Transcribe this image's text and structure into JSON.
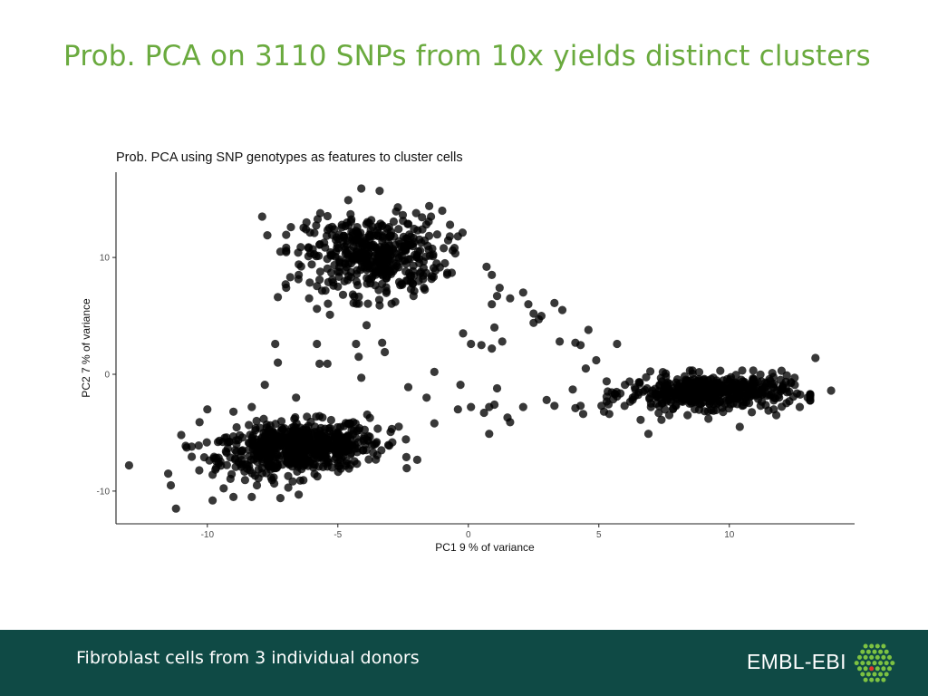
{
  "slide": {
    "title": "Prob. PCA on 3110 SNPs from 10x yields distinct clusters",
    "footer_text": "Fibroblast cells from 3 individual donors",
    "brand": "EMBL-EBI",
    "brand_logo": "embl-ebi-hexagon-logo"
  },
  "colors": {
    "title": "#6aaa3e",
    "footer_bg": "#0f4a45",
    "points": "#000000",
    "logo_green": "#7dc242",
    "logo_accent": "#e0342b"
  },
  "chart_data": {
    "type": "scatter",
    "title": "Prob. PCA using SNP genotypes as features to cluster cells",
    "xlabel": "PC1 9 % of variance",
    "ylabel": "PC2 7 % of variance",
    "xlim": [
      -13.5,
      14.8
    ],
    "ylim": [
      -12.8,
      17.3
    ],
    "xticks": [
      -10,
      -5,
      0,
      5,
      10
    ],
    "yticks": [
      -10,
      0,
      10
    ],
    "grid": false,
    "legend": "none",
    "marker_opacity": 0.78,
    "clusters": [
      {
        "center": [
          -6.5,
          -6.3
        ],
        "spread": [
          1.6,
          1.05
        ],
        "rotation_deg": 14,
        "count": 650
      },
      {
        "center": [
          -3.6,
          10.2
        ],
        "spread": [
          1.3,
          1.6
        ],
        "rotation_deg": 0,
        "count": 430
      },
      {
        "center": [
          9.2,
          -1.5
        ],
        "spread": [
          1.5,
          0.7
        ],
        "rotation_deg": 0,
        "count": 480
      }
    ],
    "points": [
      [
        -13.0,
        -7.8
      ],
      [
        -11.5,
        -8.5
      ],
      [
        -11.2,
        -11.5
      ],
      [
        -11.4,
        -9.5
      ],
      [
        -11.0,
        -5.2
      ],
      [
        -10.6,
        -6.2
      ],
      [
        -9.8,
        -10.8
      ],
      [
        -9.0,
        -10.5
      ],
      [
        -8.3,
        -10.5
      ],
      [
        -7.2,
        -10.6
      ],
      [
        -6.5,
        -10.3
      ],
      [
        -6.9,
        -9.7
      ],
      [
        -8.1,
        -9.5
      ],
      [
        -10.3,
        -4.1
      ],
      [
        -10.0,
        -3.0
      ],
      [
        -9.0,
        -3.2
      ],
      [
        -8.3,
        -2.8
      ],
      [
        -9.8,
        -8.6
      ],
      [
        -7.9,
        13.5
      ],
      [
        -7.7,
        11.9
      ],
      [
        -7.2,
        10.5
      ],
      [
        -7.0,
        7.7
      ],
      [
        -7.3,
        6.6
      ],
      [
        -6.8,
        12.6
      ],
      [
        -6.2,
        13.0
      ],
      [
        -5.9,
        12.1
      ],
      [
        -6.5,
        8.5
      ],
      [
        -6.1,
        6.5
      ],
      [
        -5.8,
        5.6
      ],
      [
        -5.3,
        5.1
      ],
      [
        -5.7,
        8.1
      ],
      [
        -6.0,
        9.4
      ],
      [
        -4.6,
        14.9
      ],
      [
        -4.1,
        15.9
      ],
      [
        -3.4,
        15.7
      ],
      [
        -2.7,
        14.3
      ],
      [
        -2.0,
        13.8
      ],
      [
        -1.5,
        14.4
      ],
      [
        -1.0,
        14.0
      ],
      [
        -0.7,
        12.8
      ],
      [
        -0.4,
        11.8
      ],
      [
        -0.6,
        10.6
      ],
      [
        -0.9,
        9.5
      ],
      [
        -1.4,
        8.4
      ],
      [
        -1.7,
        7.4
      ],
      [
        -2.1,
        6.7
      ],
      [
        -2.8,
        6.2
      ],
      [
        -3.4,
        5.9
      ],
      [
        -4.4,
        6.1
      ],
      [
        -4.8,
        6.8
      ],
      [
        -5.0,
        7.5
      ],
      [
        0.7,
        9.2
      ],
      [
        0.9,
        8.5
      ],
      [
        1.2,
        7.4
      ],
      [
        1.1,
        6.7
      ],
      [
        0.9,
        6.0
      ],
      [
        1.6,
        6.5
      ],
      [
        2.1,
        7.0
      ],
      [
        2.3,
        6.0
      ],
      [
        2.8,
        5.0
      ],
      [
        3.3,
        6.1
      ],
      [
        3.6,
        5.5
      ],
      [
        2.7,
        4.7
      ],
      [
        2.5,
        4.4
      ],
      [
        4.6,
        3.8
      ],
      [
        4.3,
        2.5
      ],
      [
        4.1,
        2.7
      ],
      [
        3.5,
        2.8
      ],
      [
        2.5,
        5.2
      ],
      [
        1.0,
        4.0
      ],
      [
        0.9,
        2.2
      ],
      [
        1.3,
        2.8
      ],
      [
        0.5,
        2.5
      ],
      [
        -0.2,
        3.5
      ],
      [
        -3.9,
        4.2
      ],
      [
        -4.3,
        2.6
      ],
      [
        -3.3,
        2.7
      ],
      [
        -3.2,
        1.9
      ],
      [
        -4.2,
        1.5
      ],
      [
        -5.8,
        2.6
      ],
      [
        -5.4,
        0.9
      ],
      [
        -7.4,
        2.6
      ],
      [
        -7.3,
        1.0
      ],
      [
        -7.8,
        -0.9
      ],
      [
        -6.6,
        -2.0
      ],
      [
        -5.7,
        0.9
      ],
      [
        -4.1,
        -0.3
      ],
      [
        -2.3,
        -1.1
      ],
      [
        -1.6,
        -2.0
      ],
      [
        -1.3,
        -4.2
      ],
      [
        -0.4,
        -3.0
      ],
      [
        0.1,
        -2.8
      ],
      [
        0.6,
        -3.3
      ],
      [
        0.8,
        -2.8
      ],
      [
        1.0,
        -2.6
      ],
      [
        0.8,
        -5.1
      ],
      [
        1.5,
        -3.7
      ],
      [
        1.6,
        -4.1
      ],
      [
        2.1,
        -2.8
      ],
      [
        1.1,
        -1.2
      ],
      [
        0.1,
        2.6
      ],
      [
        -0.3,
        -0.9
      ],
      [
        -1.3,
        0.2
      ],
      [
        3.0,
        -2.2
      ],
      [
        3.3,
        -2.7
      ],
      [
        4.1,
        -2.9
      ],
      [
        4.3,
        -2.7
      ],
      [
        4.4,
        -3.4
      ],
      [
        4.0,
        -1.3
      ],
      [
        4.5,
        0.5
      ],
      [
        5.1,
        -2.7
      ],
      [
        5.2,
        -3.2
      ],
      [
        4.9,
        1.2
      ],
      [
        5.7,
        2.6
      ],
      [
        5.4,
        -3.4
      ],
      [
        6.0,
        -0.9
      ],
      [
        6.4,
        -1.3
      ],
      [
        6.3,
        -2.0
      ],
      [
        6.6,
        -3.9
      ],
      [
        6.9,
        -5.1
      ],
      [
        5.7,
        -1.9
      ],
      [
        13.3,
        1.4
      ],
      [
        13.9,
        -1.4
      ],
      [
        13.0,
        -2.0
      ],
      [
        12.7,
        -2.8
      ],
      [
        12.5,
        -0.3
      ],
      [
        12.0,
        0.3
      ],
      [
        11.5,
        -3.1
      ],
      [
        11.2,
        -2.7
      ],
      [
        10.4,
        -4.5
      ],
      [
        11.8,
        -3.5
      ],
      [
        12.3,
        -2.3
      ],
      [
        9.2,
        -3.8
      ],
      [
        8.4,
        -3.5
      ],
      [
        7.7,
        -3.5
      ],
      [
        7.4,
        -3.9
      ],
      [
        7.0,
        -2.5
      ]
    ]
  }
}
